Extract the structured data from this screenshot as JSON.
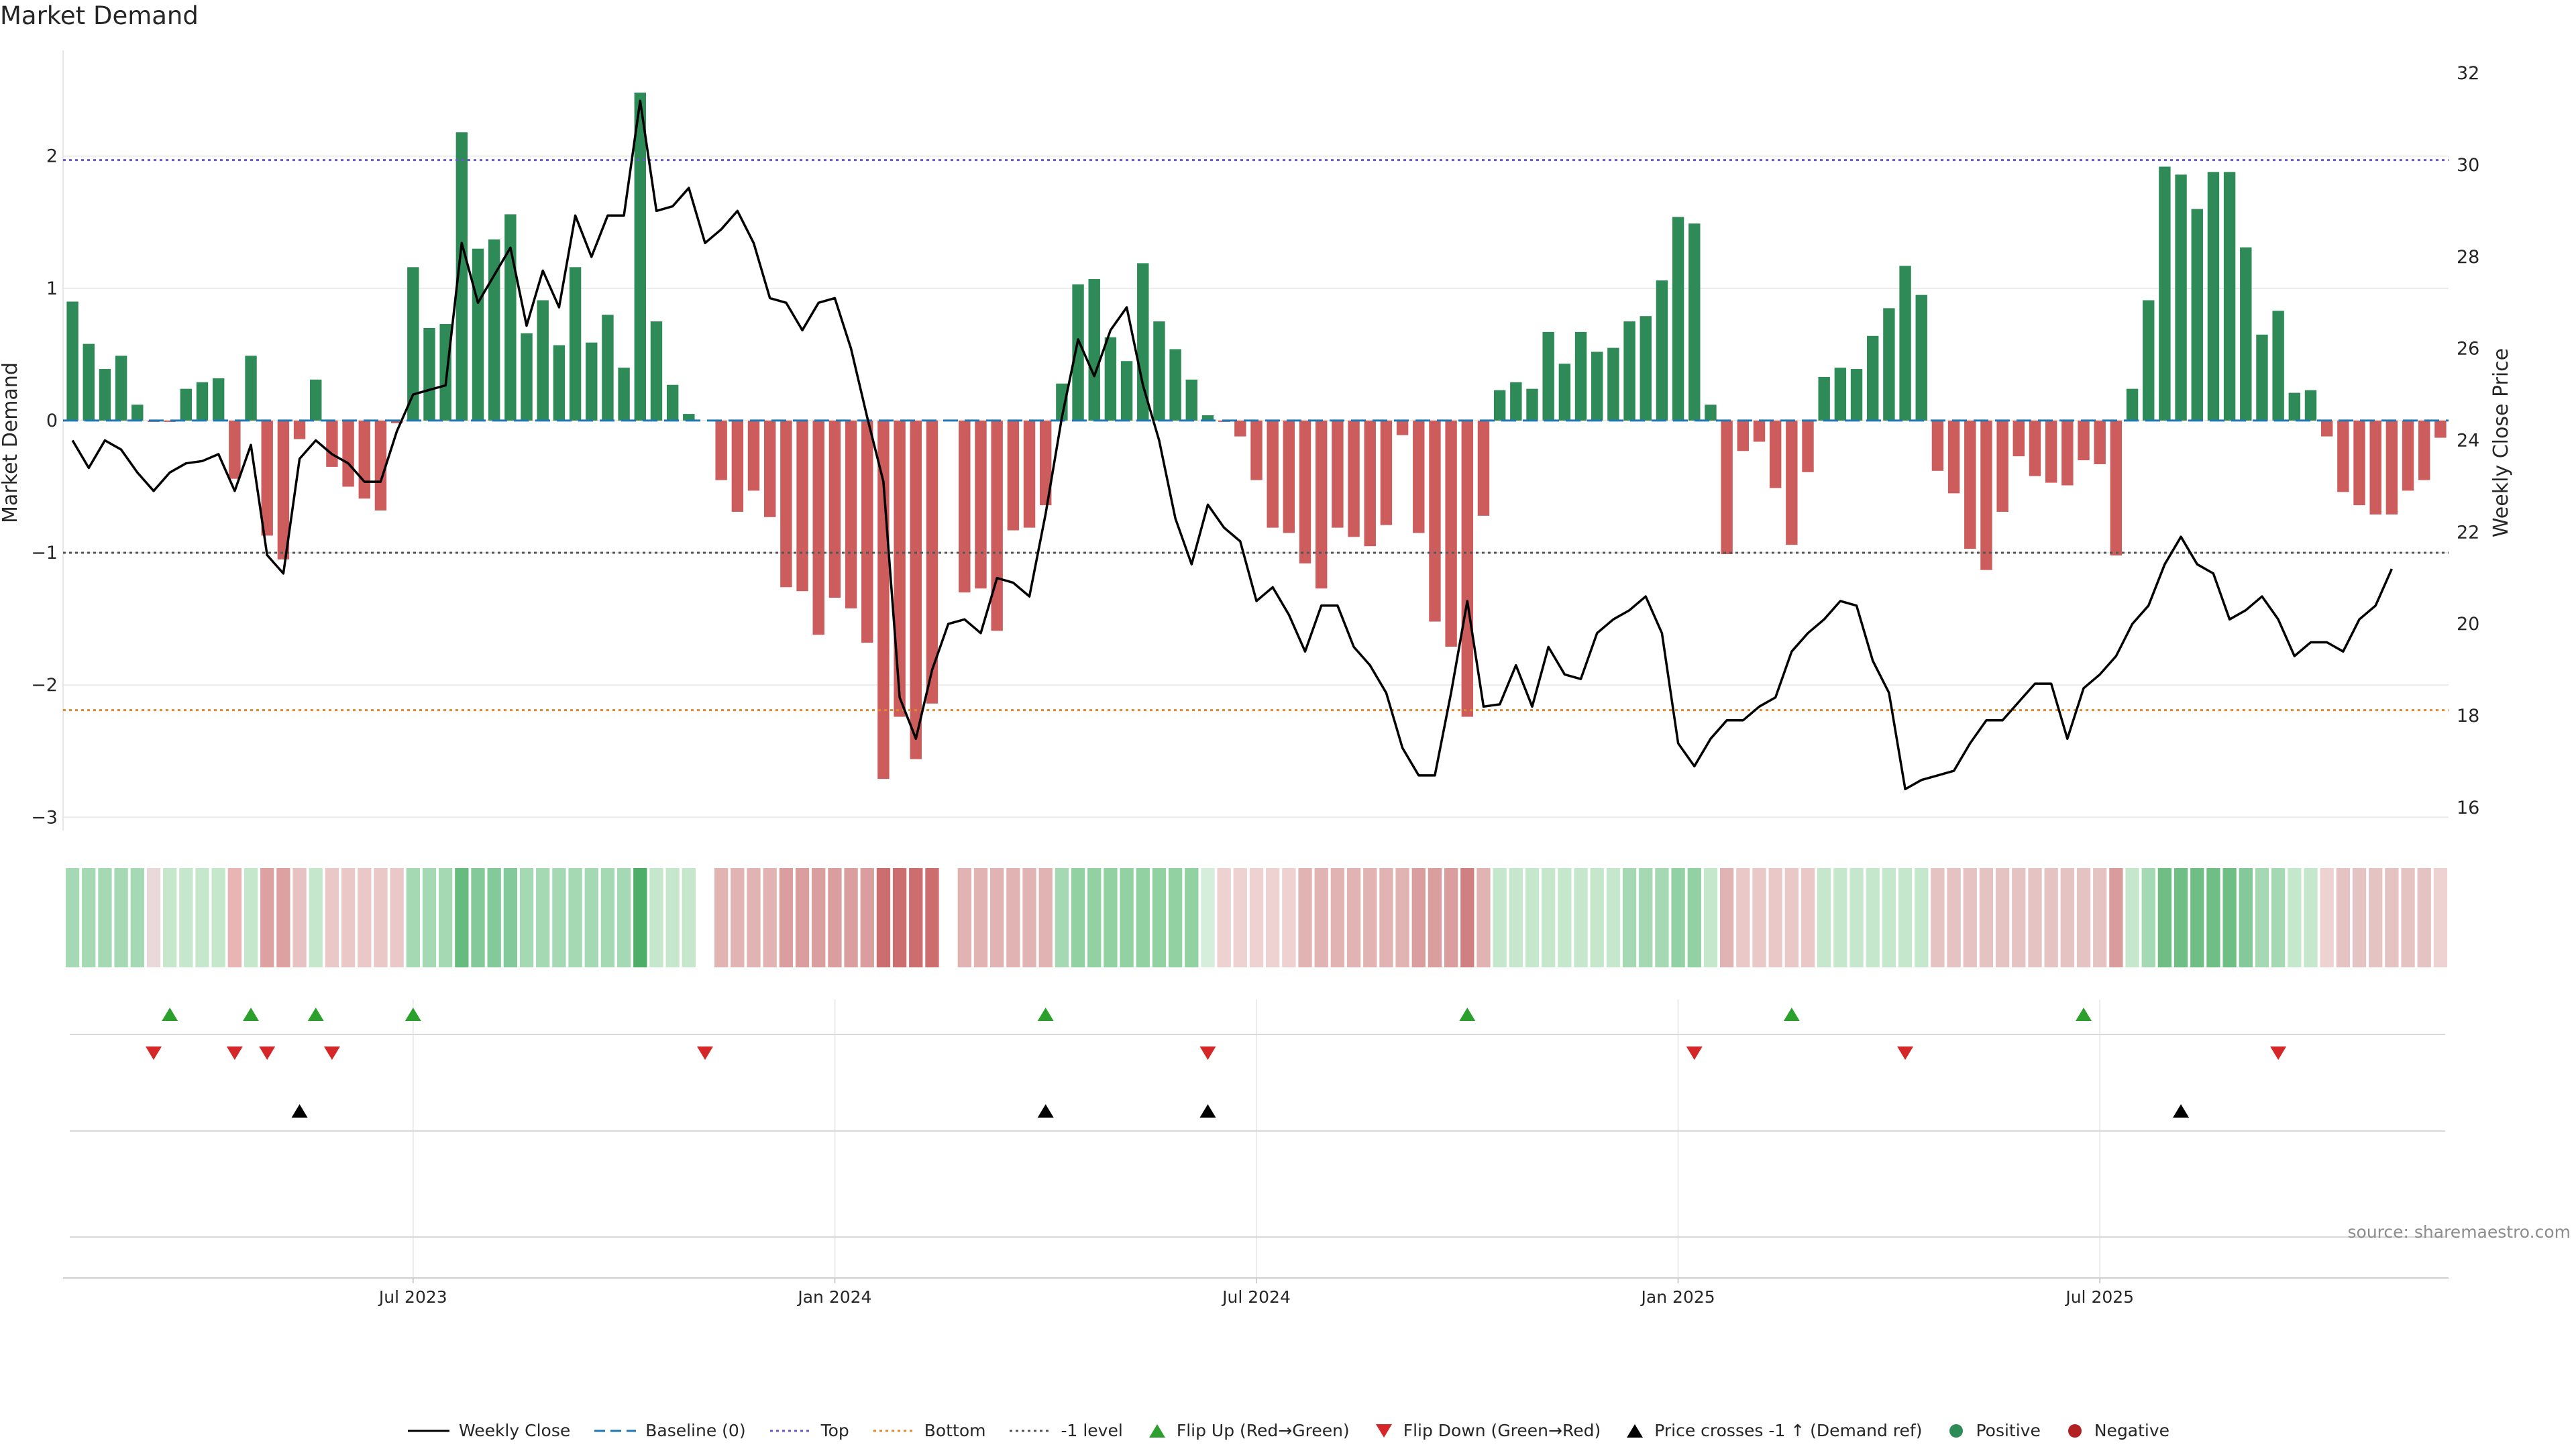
{
  "chart_data": {
    "type": "bar",
    "title": "Market Demand",
    "ylabel_left": "Market Demand",
    "ylabel_right": "Weekly Close Price",
    "source": "source: sharemaestro.com",
    "left_axis": {
      "ylim": [
        -3.1,
        2.8
      ],
      "ticks": [
        2,
        1,
        0,
        -1,
        -2,
        -3
      ],
      "tick_labels": [
        "2",
        "1",
        "0",
        "−1",
        "−2",
        "−3"
      ]
    },
    "right_axis": {
      "ylim": [
        15.5,
        32.5
      ],
      "ticks": [
        32,
        30,
        28,
        26,
        24,
        22,
        20,
        18,
        16
      ],
      "tick_labels": [
        "32",
        "30",
        "28",
        "26",
        "24",
        "22",
        "20",
        "18",
        "16"
      ]
    },
    "x_tick_labels": [
      "Jul 2023",
      "Jan 2024",
      "Jul 2024",
      "Jan 2025",
      "Jul 2025"
    ],
    "x_tick_weeks": [
      21,
      47,
      73,
      99,
      125
    ],
    "reference_lines": {
      "top": 1.97,
      "bottom": -2.19,
      "minus_one": -1.0,
      "baseline": 0
    },
    "colors": {
      "positive": "#2e8b57",
      "negative": "#cd5c5c",
      "price": "#000000",
      "top": "#6a5acd",
      "bottom": "#e08a2b",
      "minus_one": "#555555",
      "baseline": "#1f77b4",
      "flip_up": "#2ca02c",
      "flip_down": "#d62728",
      "cross": "#000000"
    },
    "demand": [
      0.9,
      0.58,
      0.39,
      0.49,
      0.12,
      -0.01,
      -0.01,
      0.24,
      0.29,
      0.32,
      -0.44,
      0.49,
      -0.87,
      -1.05,
      -0.14,
      0.31,
      -0.35,
      -0.5,
      -0.59,
      -0.68,
      -0.02,
      1.16,
      0.7,
      0.73,
      2.18,
      1.3,
      1.37,
      1.56,
      0.66,
      0.91,
      0.57,
      1.16,
      0.59,
      0.8,
      0.4,
      2.48,
      0.75,
      0.27,
      0.05,
      0.0,
      -0.45,
      -0.69,
      -0.53,
      -0.73,
      -1.26,
      -1.29,
      -1.62,
      -1.34,
      -1.42,
      -1.68,
      -2.71,
      -2.24,
      -2.56,
      -2.14,
      0.0,
      -1.3,
      -1.27,
      -1.59,
      -0.83,
      -0.81,
      -0.64,
      0.28,
      1.03,
      1.07,
      0.63,
      0.45,
      1.19,
      0.75,
      0.54,
      0.31,
      0.04,
      -0.01,
      -0.12,
      -0.45,
      -0.81,
      -0.85,
      -1.08,
      -1.27,
      -0.81,
      -0.88,
      -0.95,
      -0.79,
      -0.11,
      -0.85,
      -1.52,
      -1.71,
      -2.24,
      -0.72,
      0.23,
      0.29,
      0.24,
      0.67,
      0.43,
      0.67,
      0.52,
      0.55,
      0.75,
      0.79,
      1.06,
      1.54,
      1.49,
      0.12,
      -1.01,
      -0.23,
      -0.16,
      -0.51,
      -0.94,
      -0.39,
      0.33,
      0.4,
      0.39,
      0.64,
      0.85,
      1.17,
      0.95,
      -0.38,
      -0.55,
      -0.97,
      -1.13,
      -0.69,
      -0.27,
      -0.42,
      -0.47,
      -0.49,
      -0.3,
      -0.33,
      -1.02,
      0.24,
      0.91,
      1.92,
      1.86,
      1.6,
      1.88,
      1.88,
      1.31,
      0.65,
      0.83,
      0.21,
      0.23,
      -0.12,
      -0.54,
      -0.64,
      -0.71,
      -0.71,
      -0.53,
      -0.45,
      -0.13
    ],
    "price": [
      24.0,
      23.4,
      24.0,
      23.8,
      23.3,
      22.9,
      23.3,
      23.5,
      23.55,
      23.7,
      22.9,
      23.9,
      21.5,
      21.1,
      23.6,
      24.0,
      23.7,
      23.5,
      23.1,
      23.1,
      24.2,
      25.0,
      25.1,
      25.2,
      28.3,
      27.0,
      27.6,
      28.2,
      26.5,
      27.7,
      26.9,
      28.9,
      28.0,
      28.9,
      28.9,
      31.4,
      29.0,
      29.1,
      29.5,
      28.3,
      28.6,
      29.0,
      28.3,
      27.1,
      27.0,
      26.4,
      27.0,
      27.1,
      26.0,
      24.5,
      23.1,
      18.4,
      17.5,
      19.0,
      20.0,
      20.1,
      19.8,
      21.0,
      20.9,
      20.6,
      22.4,
      24.5,
      26.2,
      25.4,
      26.4,
      26.9,
      25.2,
      24.0,
      22.3,
      21.3,
      22.6,
      22.1,
      21.8,
      20.5,
      20.8,
      20.2,
      19.4,
      20.4,
      20.4,
      19.5,
      19.1,
      18.5,
      17.3,
      16.7,
      16.7,
      18.5,
      20.5,
      18.2,
      18.25,
      19.1,
      18.2,
      19.5,
      18.9,
      18.8,
      19.8,
      20.1,
      20.3,
      20.6,
      19.8,
      17.4,
      16.9,
      17.5,
      17.9,
      17.9,
      18.2,
      18.4,
      19.4,
      19.8,
      20.1,
      20.5,
      20.4,
      19.2,
      18.5,
      16.4,
      16.6,
      16.7,
      16.8,
      17.4,
      17.9,
      17.9,
      18.3,
      18.7,
      18.7,
      17.5,
      18.6,
      18.9,
      19.3,
      20.0,
      20.4,
      21.3,
      21.9,
      21.3,
      21.1,
      20.1,
      20.3,
      20.6,
      20.1,
      19.3,
      19.6,
      19.6,
      19.4,
      20.1,
      20.4,
      21.2
    ],
    "heat_strip": {
      "colors": [
        "#a5d9b4",
        "#a5d9b4",
        "#a5d9b4",
        "#a5d9b4",
        "#a5d9b4",
        "#ead9d9",
        "#c5e8cd",
        "#c5e8cd",
        "#c5e8cd",
        "#c5e8cd",
        "#e8b4b4",
        "#c5e8cd",
        "#dda1a1",
        "#dda1a1",
        "#e8c2c2",
        "#c5e8cd",
        "#eac8c8",
        "#eac8c8",
        "#eac8c8",
        "#eac8c8",
        "#eac8c8",
        "#a5d9b4",
        "#a5d9b4",
        "#a5d9b4",
        "#66bb7f",
        "#83c999",
        "#83c999",
        "#83c999",
        "#a5d9b4",
        "#a5d9b4",
        "#a5d9b4",
        "#a5d9b4",
        "#a5d9b4",
        "#a5d9b4",
        "#a5d9b4",
        "#4cae67",
        "#c5e8cd",
        "#c5e8cd",
        "#c5e8cd",
        "#ffffff",
        "#e2b3b3",
        "#e2b3b3",
        "#e2b3b3",
        "#e2b3b3",
        "#db9e9e",
        "#db9e9e",
        "#db9e9e",
        "#db9e9e",
        "#db9e9e",
        "#db9e9e",
        "#cd6e6e",
        "#cd6e6e",
        "#cd6e6e",
        "#cd6e6e",
        "#ffffff",
        "#e2b3b3",
        "#e2b3b3",
        "#e2b3b3",
        "#e2b3b3",
        "#e2b3b3",
        "#e2b3b3",
        "#a5d9b4",
        "#91d1a2",
        "#91d1a2",
        "#91d1a2",
        "#91d1a2",
        "#91d1a2",
        "#91d1a2",
        "#91d1a2",
        "#91d1a2",
        "#d5eedb",
        "#eed2d2",
        "#eed2d2",
        "#eed2d2",
        "#eed2d2",
        "#eed2d2",
        "#e2b3b3",
        "#e2b3b3",
        "#e2b3b3",
        "#e2b3b3",
        "#e2b3b3",
        "#e2b3b3",
        "#e2b3b3",
        "#db9e9e",
        "#db9e9e",
        "#db9e9e",
        "#d08080",
        "#e2b3b3",
        "#c5e8cd",
        "#c5e8cd",
        "#c5e8cd",
        "#c5e8cd",
        "#c5e8cd",
        "#c5e8cd",
        "#c5e8cd",
        "#c5e8cd",
        "#a5d9b4",
        "#a5d9b4",
        "#a5d9b4",
        "#91d1a2",
        "#91d1a2",
        "#c5e8cd",
        "#e2b3b3",
        "#eac8c8",
        "#eac8c8",
        "#eac8c8",
        "#eac8c8",
        "#eac8c8",
        "#c5e8cd",
        "#c5e8cd",
        "#c5e8cd",
        "#c5e8cd",
        "#c5e8cd",
        "#c5e8cd",
        "#c5e8cd",
        "#e5c3c3",
        "#e5c3c3",
        "#e5c3c3",
        "#e5c3c3",
        "#e5c3c3",
        "#e5c3c3",
        "#e5c3c3",
        "#e5c3c3",
        "#e5c3c3",
        "#e5c3c3",
        "#e5c3c3",
        "#d99c9c",
        "#c5e8cd",
        "#a5d9b4",
        "#6fbf85",
        "#6fbf85",
        "#6fbf85",
        "#6fbf85",
        "#6fbf85",
        "#83c999",
        "#a5d9b4",
        "#a5d9b4",
        "#c5e8cd",
        "#c5e8cd",
        "#eed2d2",
        "#e5c3c3",
        "#e5c3c3",
        "#e5c3c3",
        "#e5c3c3",
        "#e5c3c3",
        "#e5c3c3",
        "#eed2d2"
      ]
    },
    "flip_up_weeks": [
      6,
      11,
      15,
      21,
      60,
      86,
      106,
      124
    ],
    "flip_down_weeks": [
      5,
      10,
      12,
      16,
      39,
      70,
      100,
      113,
      136
    ],
    "price_cross_weeks": [
      14,
      60,
      70,
      130
    ],
    "legend": [
      {
        "label": "Weekly Close",
        "symbol": "line-solid",
        "color": "#000000"
      },
      {
        "label": "Baseline (0)",
        "symbol": "line-dashed",
        "color": "#1f77b4"
      },
      {
        "label": "Top",
        "symbol": "line-dotted",
        "color": "#6a5acd"
      },
      {
        "label": "Bottom",
        "symbol": "line-dotted",
        "color": "#e08a2b"
      },
      {
        "label": "-1 level",
        "symbol": "line-dotted",
        "color": "#555555"
      },
      {
        "label": "Flip Up (Red→Green)",
        "symbol": "triangle-up",
        "color": "#2ca02c"
      },
      {
        "label": "Flip Down (Green→Red)",
        "symbol": "triangle-down",
        "color": "#d62728"
      },
      {
        "label": "Price crosses -1 ↑ (Demand ref)",
        "symbol": "triangle-up",
        "color": "#000000"
      },
      {
        "label": "Positive",
        "symbol": "circle",
        "color": "#2e8b57"
      },
      {
        "label": "Negative",
        "symbol": "circle",
        "color": "#b22222"
      }
    ]
  }
}
